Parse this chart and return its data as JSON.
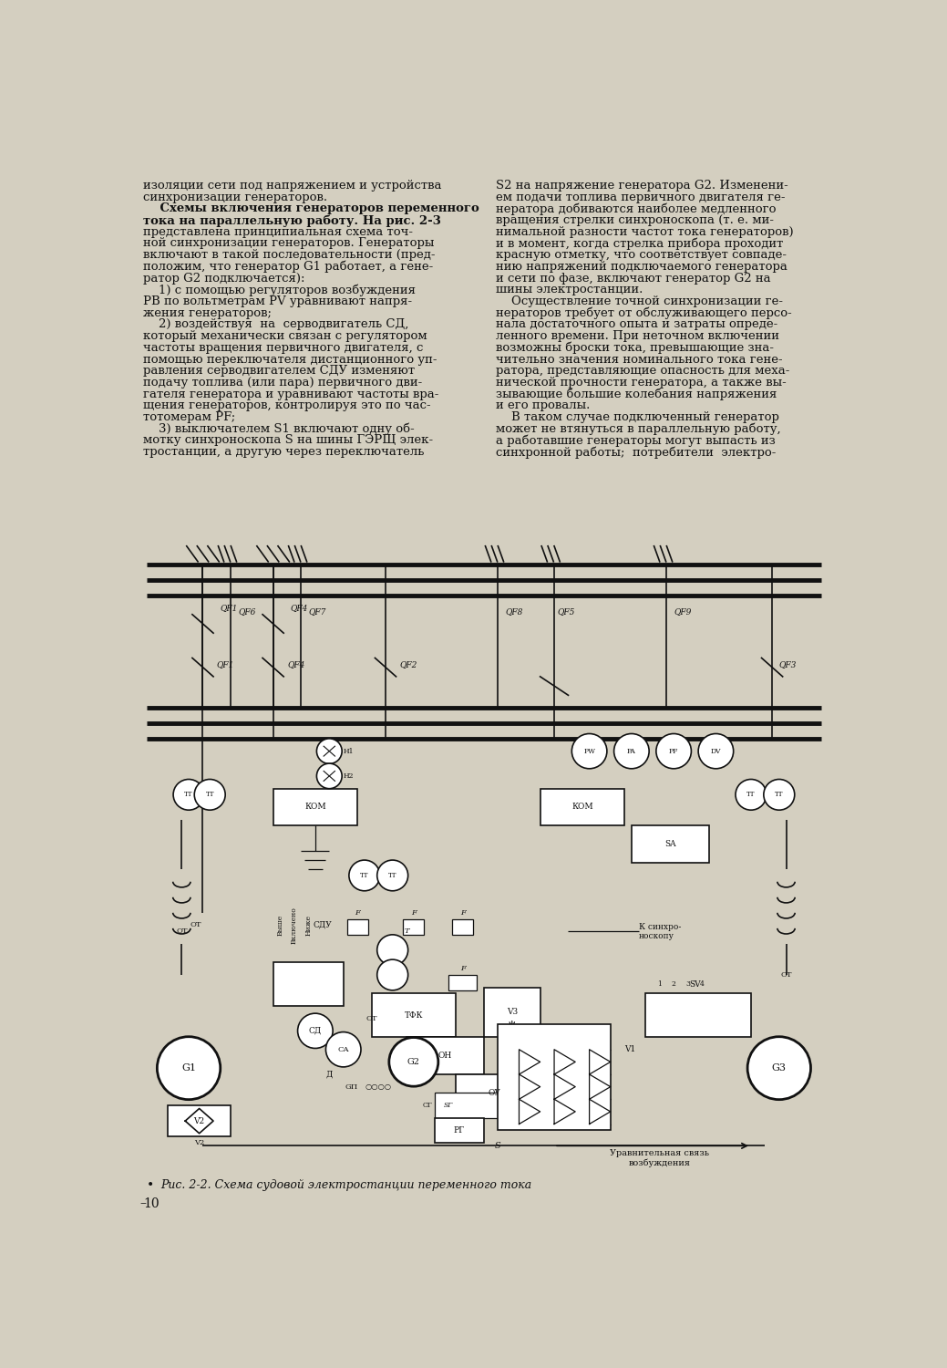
{
  "background_color": "#d4cfc0",
  "page_color": "#ede8d8",
  "text_color": "#111111",
  "caption": "Рис. 2-2. Схема судовой электростанции переменного тока",
  "page_number": "10",
  "col1_lines": [
    [
      "n",
      "изоляции сети под напряжением и устройства"
    ],
    [
      "n",
      "синхронизации генераторов."
    ],
    [
      "b",
      "    Схемы включения генераторов переменного"
    ],
    [
      "b",
      "тока на параллельную работу. На рис. 2-3"
    ],
    [
      "n",
      "представлена принципиальная схема точ-"
    ],
    [
      "n",
      "ной синхронизации генераторов. Генераторы"
    ],
    [
      "n",
      "включают в такой последовательности (пред-"
    ],
    [
      "n",
      "положим, что генератор G1 работает, а гене-"
    ],
    [
      "n",
      "ратор G2 подключается):"
    ],
    [
      "n",
      "    1) с помощью регуляторов возбуждения"
    ],
    [
      "n",
      "PB по вольтметрам PV уравнивают напря-"
    ],
    [
      "n",
      "жения генераторов;"
    ],
    [
      "n",
      "    2) воздействуя  на  серводвигатель СД,"
    ],
    [
      "n",
      "который механически связан с регулятором"
    ],
    [
      "n",
      "частоты вращения первичного двигателя, с"
    ],
    [
      "n",
      "помощью переключателя дистанционного уп-"
    ],
    [
      "n",
      "равления серводвигателем СДУ изменяют"
    ],
    [
      "n",
      "подачу топлива (или пара) первичного дви-"
    ],
    [
      "n",
      "гателя генератора и уравнивают частоты вра-"
    ],
    [
      "n",
      "щения генераторов, контролируя это по час-"
    ],
    [
      "n",
      "тотомерам PF;"
    ],
    [
      "n",
      "    3) выключателем S1 включают одну об-"
    ],
    [
      "n",
      "мотку синхроноскопа S на шины ГЭРЩ элек-"
    ],
    [
      "n",
      "тростанции, а другую через переключатель"
    ]
  ],
  "col2_lines": [
    [
      "n",
      "S2 на напряжение генератора G2. Изменени-"
    ],
    [
      "n",
      "ем подачи топлива первичного двигателя ге-"
    ],
    [
      "n",
      "нератора добиваются наиболее медленного"
    ],
    [
      "n",
      "вращения стрелки синхроноскопа (т. е. ми-"
    ],
    [
      "n",
      "нимальной разности частот тока генераторов)"
    ],
    [
      "n",
      "и в момент, когда стрелка прибора проходит"
    ],
    [
      "n",
      "красную отметку, что соответствует совпаде-"
    ],
    [
      "n",
      "нию напряжений подключаемого генератора"
    ],
    [
      "n",
      "и сети по фазе, включают генератор G2 на"
    ],
    [
      "n",
      "шины электростанции."
    ],
    [
      "n",
      "    Осуществление точной синхронизации ге-"
    ],
    [
      "n",
      "нераторов требует от обслуживающего персо-"
    ],
    [
      "n",
      "нала достаточного опыта и затраты опреде-"
    ],
    [
      "n",
      "ленного времени. При неточном включении"
    ],
    [
      "n",
      "возможны броски тока, превышающие зна-"
    ],
    [
      "n",
      "чительно значения номинального тока гене-"
    ],
    [
      "n",
      "ратора, представляющие опасность для меха-"
    ],
    [
      "n",
      "нической прочности генератора, а также вы-"
    ],
    [
      "n",
      "зывающие большие колебания напряжения"
    ],
    [
      "n",
      "и его провалы."
    ],
    [
      "n",
      "    В таком случае подключенный генератор"
    ],
    [
      "n",
      "может не втянуться в параллельную работу,"
    ],
    [
      "n",
      "а работавшие генераторы могут выпасть из"
    ],
    [
      "n",
      "синхронной работы;  потребители  электро-"
    ]
  ]
}
